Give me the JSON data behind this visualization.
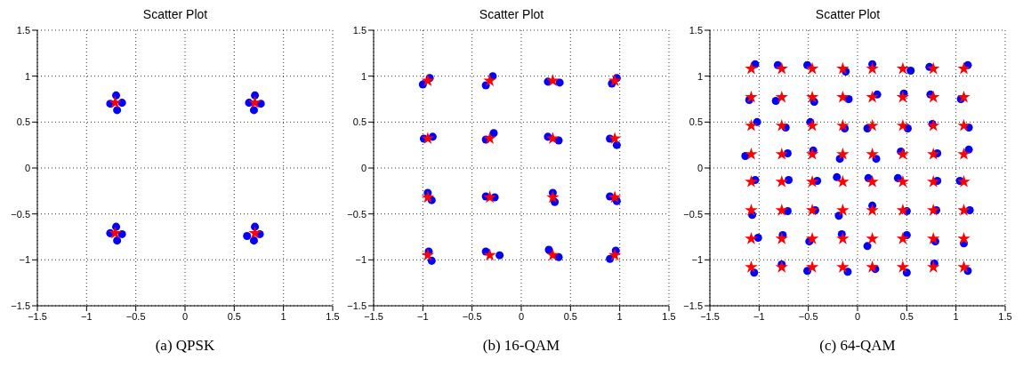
{
  "chart_data": [
    {
      "type": "scatter",
      "title": "Scatter Plot",
      "xlabel": "(a) QPSK",
      "xlim": [
        -1.5,
        1.5
      ],
      "ylim": [
        -1.5,
        1.5
      ],
      "xticks": [
        -1.5,
        -1,
        -0.5,
        0,
        0.5,
        1,
        1.5
      ],
      "yticks": [
        -1.5,
        -1,
        -0.5,
        0,
        0.5,
        1,
        1.5
      ],
      "grid": true,
      "series": [
        {
          "color": "#0000ff",
          "marker": "circle",
          "x": [
            -0.76,
            -0.64,
            -0.7,
            -0.69,
            0.65,
            0.77,
            0.71,
            0.7,
            -0.76,
            -0.64,
            -0.7,
            -0.69,
            0.63,
            0.76,
            0.71,
            0.7
          ],
          "values": [
            0.7,
            0.71,
            0.79,
            0.63,
            0.71,
            0.7,
            0.79,
            0.63,
            -0.71,
            -0.72,
            -0.64,
            -0.79,
            -0.74,
            -0.72,
            -0.64,
            -0.79
          ]
        },
        {
          "color": "#ff0000",
          "marker": "star",
          "x": [
            -0.71,
            0.71,
            -0.71,
            0.71
          ],
          "values": [
            0.71,
            0.71,
            -0.71,
            -0.71
          ]
        }
      ]
    },
    {
      "type": "scatter",
      "title": "Scatter Plot",
      "xlabel": "(b) 16-QAM",
      "xlim": [
        -1.5,
        1.5
      ],
      "ylim": [
        -1.5,
        1.5
      ],
      "xticks": [
        -1.5,
        -1,
        -0.5,
        0,
        0.5,
        1,
        1.5
      ],
      "yticks": [
        -1.5,
        -1,
        -0.5,
        0,
        0.5,
        1,
        1.5
      ],
      "grid": true,
      "series": [
        {
          "color": "#0000ff",
          "marker": "circle",
          "x": [
            -1.0,
            -0.93,
            -0.36,
            -0.29,
            0.27,
            0.39,
            0.92,
            0.97,
            -0.99,
            -0.9,
            -0.36,
            -0.28,
            0.27,
            0.38,
            0.9,
            0.97,
            -0.95,
            -0.91,
            -0.36,
            -0.27,
            0.32,
            0.34,
            0.9,
            0.97,
            -0.94,
            -0.91,
            -0.36,
            -0.22,
            0.28,
            0.38,
            0.9,
            0.96
          ],
          "values": [
            0.91,
            0.98,
            0.9,
            1.0,
            0.94,
            0.93,
            0.92,
            0.98,
            0.32,
            0.34,
            0.31,
            0.38,
            0.34,
            0.3,
            0.32,
            0.25,
            -0.27,
            -0.35,
            -0.31,
            -0.32,
            -0.27,
            -0.37,
            -0.31,
            -0.36,
            -0.91,
            -1.01,
            -0.91,
            -0.95,
            -0.89,
            -0.97,
            -0.99,
            -0.9
          ]
        },
        {
          "color": "#ff0000",
          "marker": "star",
          "x": [
            -0.95,
            -0.32,
            0.32,
            0.95,
            -0.95,
            -0.32,
            0.32,
            0.95,
            -0.95,
            -0.32,
            0.32,
            0.95,
            -0.95,
            -0.32,
            0.32,
            0.95
          ],
          "values": [
            0.95,
            0.95,
            0.95,
            0.95,
            0.32,
            0.32,
            0.32,
            0.32,
            -0.32,
            -0.32,
            -0.32,
            -0.32,
            -0.95,
            -0.95,
            -0.95,
            -0.95
          ]
        }
      ]
    },
    {
      "type": "scatter",
      "title": "Scatter Plot",
      "xlabel": "(c) 64-QAM",
      "xlim": [
        -1.5,
        1.5
      ],
      "ylim": [
        -1.5,
        1.5
      ],
      "xticks": [
        -1.5,
        -1,
        -0.5,
        0,
        0.5,
        1,
        1.5
      ],
      "yticks": [
        -1.5,
        -1,
        -0.5,
        0,
        0.5,
        1,
        1.5
      ],
      "grid": true,
      "series": [
        {
          "color": "#0000ff",
          "marker": "circle",
          "x": [
            -1.04,
            -0.81,
            -0.51,
            -0.12,
            0.15,
            0.54,
            0.73,
            1.12,
            -1.1,
            -0.83,
            -0.44,
            -0.09,
            0.2,
            0.47,
            0.74,
            1.05,
            -1.02,
            -0.73,
            -0.48,
            -0.13,
            0.1,
            0.51,
            0.76,
            1.13,
            -1.14,
            -0.71,
            -0.45,
            -0.18,
            0.19,
            0.44,
            0.81,
            1.13,
            -1.04,
            -0.7,
            -0.41,
            -0.21,
            0.11,
            0.41,
            0.81,
            1.04,
            -1.07,
            -0.71,
            -0.43,
            -0.19,
            0.15,
            0.5,
            0.8,
            1.14,
            -1.01,
            -0.76,
            -0.49,
            -0.16,
            0.1,
            0.5,
            0.79,
            1.08,
            -1.05,
            -0.77,
            -0.51,
            -0.1,
            0.18,
            0.5,
            0.78,
            1.12
          ],
          "values": [
            1.13,
            1.12,
            1.12,
            1.05,
            1.13,
            1.06,
            1.1,
            1.12,
            0.74,
            0.73,
            0.72,
            0.75,
            0.8,
            0.81,
            0.8,
            0.75,
            0.5,
            0.44,
            0.5,
            0.43,
            0.43,
            0.43,
            0.48,
            0.44,
            0.13,
            0.16,
            0.19,
            0.1,
            0.1,
            0.18,
            0.16,
            0.2,
            -0.13,
            -0.13,
            -0.14,
            -0.1,
            -0.11,
            -0.11,
            -0.14,
            -0.14,
            -0.51,
            -0.47,
            -0.46,
            -0.52,
            -0.41,
            -0.47,
            -0.46,
            -0.46,
            -0.76,
            -0.73,
            -0.8,
            -0.72,
            -0.85,
            -0.73,
            -0.8,
            -0.82,
            -1.14,
            -1.05,
            -1.12,
            -1.13,
            -1.1,
            -1.14,
            -1.04,
            -1.12
          ]
        },
        {
          "color": "#ff0000",
          "marker": "star",
          "x": [
            -1.08,
            -0.77,
            -0.46,
            -0.15,
            0.15,
            0.46,
            0.77,
            1.08,
            -1.08,
            -0.77,
            -0.46,
            -0.15,
            0.15,
            0.46,
            0.77,
            1.08,
            -1.08,
            -0.77,
            -0.46,
            -0.15,
            0.15,
            0.46,
            0.77,
            1.08,
            -1.08,
            -0.77,
            -0.46,
            -0.15,
            0.15,
            0.46,
            0.77,
            1.08,
            -1.08,
            -0.77,
            -0.46,
            -0.15,
            0.15,
            0.46,
            0.77,
            1.08,
            -1.08,
            -0.77,
            -0.46,
            -0.15,
            0.15,
            0.46,
            0.77,
            1.08,
            -1.08,
            -0.77,
            -0.46,
            -0.15,
            0.15,
            0.46,
            0.77,
            1.08,
            -1.08,
            -0.77,
            -0.46,
            -0.15,
            0.15,
            0.46,
            0.77,
            1.08
          ],
          "values": [
            1.08,
            1.08,
            1.08,
            1.08,
            1.08,
            1.08,
            1.08,
            1.08,
            0.77,
            0.77,
            0.77,
            0.77,
            0.77,
            0.77,
            0.77,
            0.77,
            0.46,
            0.46,
            0.46,
            0.46,
            0.46,
            0.46,
            0.46,
            0.46,
            0.15,
            0.15,
            0.15,
            0.15,
            0.15,
            0.15,
            0.15,
            0.15,
            -0.15,
            -0.15,
            -0.15,
            -0.15,
            -0.15,
            -0.15,
            -0.15,
            -0.15,
            -0.46,
            -0.46,
            -0.46,
            -0.46,
            -0.46,
            -0.46,
            -0.46,
            -0.46,
            -0.77,
            -0.77,
            -0.77,
            -0.77,
            -0.77,
            -0.77,
            -0.77,
            -0.77,
            -1.08,
            -1.08,
            -1.08,
            -1.08,
            -1.08,
            -1.08,
            -1.08,
            -1.08
          ]
        }
      ]
    }
  ]
}
